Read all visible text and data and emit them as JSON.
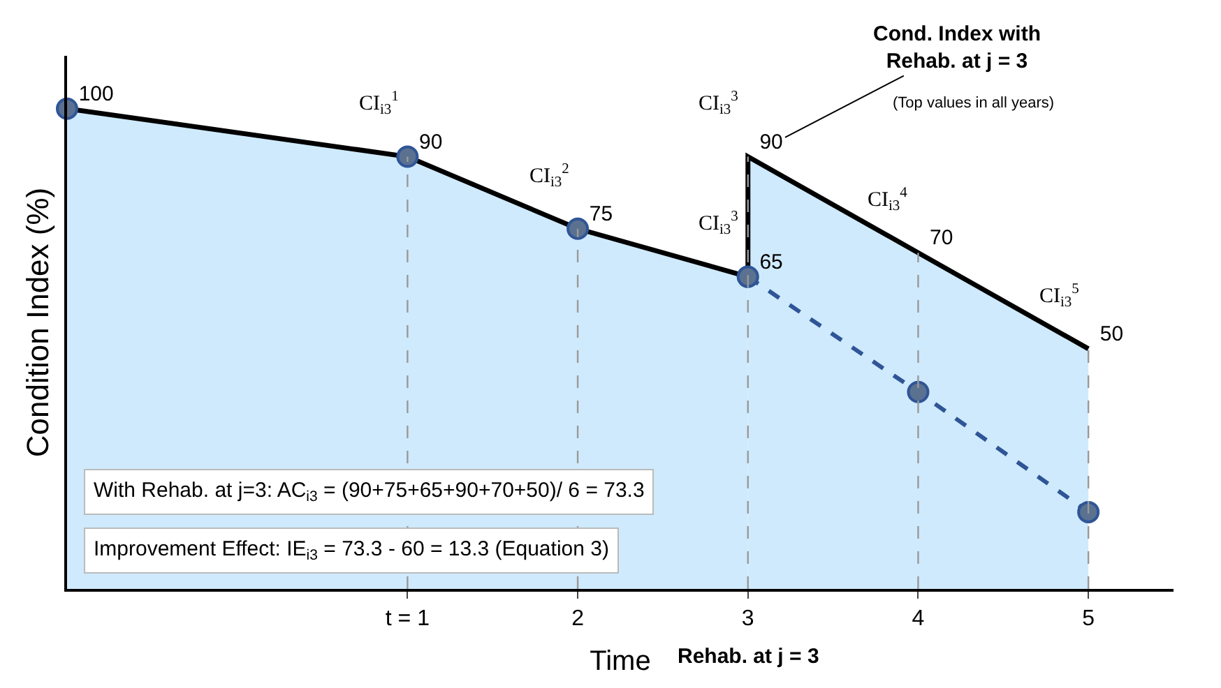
{
  "chart_data": {
    "type": "area",
    "xlabel": "Time",
    "ylabel": "Condition Index (%)",
    "xlim": [
      -1,
      5.5
    ],
    "xticks": [
      {
        "value": 1,
        "label": "t = 1"
      },
      2,
      3,
      4,
      5
    ],
    "ylim": [
      0,
      111
    ],
    "tick_labels": "x",
    "series": [
      {
        "color": "#cfeafc",
        "x": [
          -1,
          1,
          2,
          3
        ],
        "values": [
          100,
          90,
          75,
          65
        ],
        "value_labels": [
          "100",
          "90",
          "75",
          "65"
        ],
        "marker": "circle"
      },
      {
        "color": "#cfeafc",
        "x": [
          3,
          3,
          4,
          5
        ],
        "values": [
          65,
          90,
          70,
          50
        ],
        "value_labels": [
          null,
          "90",
          "70",
          "50"
        ],
        "marker": "none"
      },
      {
        "type": "line",
        "color": "#2f5597",
        "x": [
          3,
          4,
          5
        ],
        "values": [
          65,
          41,
          16
        ],
        "line_style": "dashed",
        "marker": "circle"
      }
    ],
    "ref_lines": [
      {
        "axis": "x",
        "value": 1,
        "color": "#999999",
        "line_style": "dashed"
      },
      {
        "axis": "x",
        "value": 2,
        "color": "#999999",
        "line_style": "dashed"
      },
      {
        "axis": "x",
        "value": 3,
        "color": "#999999",
        "line_style": "dashed"
      },
      {
        "axis": "x",
        "value": 4,
        "color": "#999999",
        "line_style": "dashed"
      },
      {
        "axis": "x",
        "value": 5,
        "color": "#999999",
        "line_style": "dashed"
      }
    ],
    "annotations": [
      {
        "text": "CI$_{i3}$$^{1}$",
        "x": 1,
        "y": 90
      },
      {
        "text": "CI$_{i3}$$^{2}$",
        "x": 2,
        "y": 75
      },
      {
        "text": "CI$_{i3}$$^{3}$",
        "x": 3,
        "y": 65
      },
      {
        "text": "CI$_{i3}$$^{3}$",
        "x": 3,
        "y": 90
      },
      {
        "text": "CI$_{i3}$$^{4}$",
        "x": 4,
        "y": 70
      },
      {
        "text": "CI$_{i3}$$^{5}$",
        "x": 5,
        "y": 50
      },
      {
        "text": "Cond. Index with\nRehab. at j = 3",
        "x": 3,
        "y": 90
      },
      "(Top values in all years)",
      "With Rehab. at j=3: AC$_{i3}$ = (90+75+65+90+70+50)/ 6 = 73.3",
      "Improvement Effect: IE$_{i3}$ = 73.3 - 60 = 13.3 (Equation 3)",
      {
        "text": "Rehab. at j = 3",
        "x": 3,
        "y": 0
      }
    ]
  }
}
